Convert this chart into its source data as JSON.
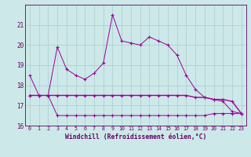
{
  "hours": [
    0,
    1,
    2,
    3,
    4,
    5,
    6,
    7,
    8,
    9,
    10,
    11,
    12,
    13,
    14,
    15,
    16,
    17,
    18,
    19,
    20,
    21,
    22,
    23
  ],
  "temp": [
    18.5,
    17.5,
    17.5,
    19.9,
    18.8,
    18.5,
    18.3,
    18.6,
    19.1,
    21.5,
    20.2,
    20.1,
    20.0,
    20.4,
    20.2,
    20.0,
    19.5,
    18.5,
    17.8,
    17.4,
    17.3,
    17.2,
    16.7,
    16.6
  ],
  "wc_min": [
    17.5,
    17.5,
    17.5,
    16.5,
    16.5,
    16.5,
    16.5,
    16.5,
    16.5,
    16.5,
    16.5,
    16.5,
    16.5,
    16.5,
    16.5,
    16.5,
    16.5,
    16.5,
    16.5,
    16.5,
    16.6,
    16.6,
    16.6,
    16.6
  ],
  "wc_max": [
    17.5,
    17.5,
    17.5,
    17.5,
    17.5,
    17.5,
    17.5,
    17.5,
    17.5,
    17.5,
    17.5,
    17.5,
    17.5,
    17.5,
    17.5,
    17.5,
    17.5,
    17.5,
    17.4,
    17.4,
    17.3,
    17.3,
    17.2,
    16.6
  ],
  "line_color": "#990099",
  "bg_color": "#cce8e8",
  "grid_color": "#aacccc",
  "text_color": "#660066",
  "ylim": [
    16,
    22
  ],
  "yticks": [
    16,
    17,
    18,
    19,
    20,
    21
  ],
  "xlim": [
    -0.5,
    23.5
  ],
  "xlabel": "Windchill (Refroidissement éolien,°C)"
}
